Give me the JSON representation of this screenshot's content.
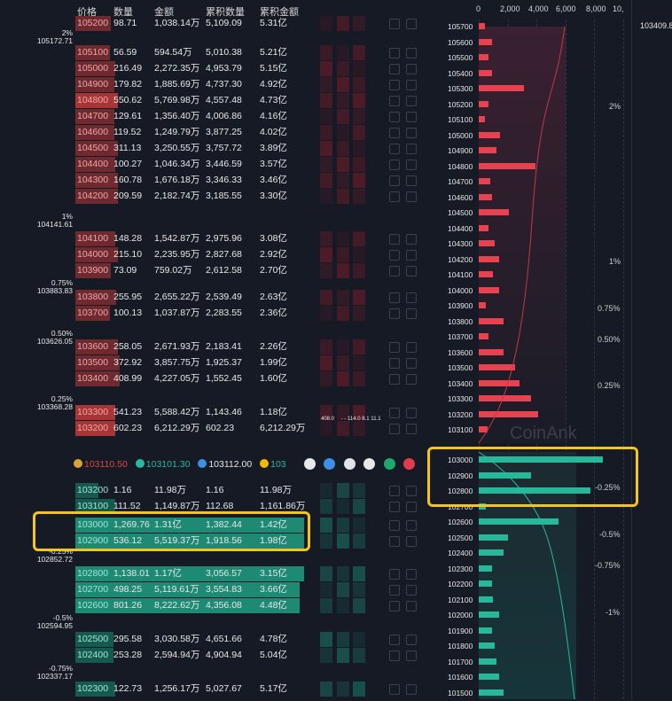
{
  "header": {
    "price": "价格",
    "qty": "数量",
    "amount": "金额",
    "cum_qty": "累积数量",
    "cum_amount": "累积金额"
  },
  "top_right_price": "103409.8",
  "scale_labels": [
    "0",
    "2,000",
    "4,000",
    "6,000",
    "8,000",
    "10,"
  ],
  "asks": [
    {
      "price": "105200",
      "qty": "98.71",
      "amount": "1,038.14万",
      "cum_qty": "5,109.09",
      "cum_amount": "5.31亿"
    },
    {
      "price": "105100",
      "qty": "56.59",
      "amount": "594.54万",
      "cum_qty": "5,010.38",
      "cum_amount": "5.21亿"
    },
    {
      "price": "105000",
      "qty": "216.49",
      "amount": "2,272.35万",
      "cum_qty": "4,953.79",
      "cum_amount": "5.15亿"
    },
    {
      "price": "104900",
      "qty": "179.82",
      "amount": "1,885.69万",
      "cum_qty": "4,737.30",
      "cum_amount": "4.92亿"
    },
    {
      "price": "104800",
      "qty": "550.62",
      "amount": "5,769.98万",
      "cum_qty": "4,557.48",
      "cum_amount": "4.73亿"
    },
    {
      "price": "104700",
      "qty": "129.61",
      "amount": "1,356.40万",
      "cum_qty": "4,006.86",
      "cum_amount": "4.16亿"
    },
    {
      "price": "104600",
      "qty": "119.52",
      "amount": "1,249.79万",
      "cum_qty": "3,877.25",
      "cum_amount": "4.02亿"
    },
    {
      "price": "104500",
      "qty": "311.13",
      "amount": "3,250.55万",
      "cum_qty": "3,757.72",
      "cum_amount": "3.89亿"
    },
    {
      "price": "104400",
      "qty": "100.27",
      "amount": "1,046.34万",
      "cum_qty": "3,446.59",
      "cum_amount": "3.57亿"
    },
    {
      "price": "104300",
      "qty": "160.78",
      "amount": "1,676.18万",
      "cum_qty": "3,346.33",
      "cum_amount": "3.46亿"
    },
    {
      "price": "104200",
      "qty": "209.59",
      "amount": "2,182.74万",
      "cum_qty": "3,185.55",
      "cum_amount": "3.30亿"
    },
    {
      "price": "104100",
      "qty": "148.28",
      "amount": "1,542.87万",
      "cum_qty": "2,975.96",
      "cum_amount": "3.08亿"
    },
    {
      "price": "104000",
      "qty": "215.10",
      "amount": "2,235.95万",
      "cum_qty": "2,827.68",
      "cum_amount": "2.92亿"
    },
    {
      "price": "103900",
      "qty": "73.09",
      "amount": "759.02万",
      "cum_qty": "2,612.58",
      "cum_amount": "2.70亿"
    },
    {
      "price": "103800",
      "qty": "255.95",
      "amount": "2,655.22万",
      "cum_qty": "2,539.49",
      "cum_amount": "2.63亿"
    },
    {
      "price": "103700",
      "qty": "100.13",
      "amount": "1,037.87万",
      "cum_qty": "2,283.55",
      "cum_amount": "2.36亿"
    },
    {
      "price": "103600",
      "qty": "258.05",
      "amount": "2,671.93万",
      "cum_qty": "2,183.41",
      "cum_amount": "2.26亿"
    },
    {
      "price": "103500",
      "qty": "372.92",
      "amount": "3,857.75万",
      "cum_qty": "1,925.37",
      "cum_amount": "1.99亿"
    },
    {
      "price": "103400",
      "qty": "408.99",
      "amount": "4,227.05万",
      "cum_qty": "1,552.45",
      "cum_amount": "1.60亿"
    },
    {
      "price": "103300",
      "qty": "541.23",
      "amount": "5,588.42万",
      "cum_qty": "1,143.46",
      "cum_amount": "1.18亿"
    },
    {
      "price": "103200",
      "qty": "602.23",
      "amount": "6,212.29万",
      "cum_qty": "602.23",
      "cum_amount": "6,212.29万"
    }
  ],
  "bids": [
    {
      "price": "103200",
      "qty": "1.16",
      "amount": "11.98万",
      "cum_qty": "1.16",
      "cum_amount": "11.98万"
    },
    {
      "price": "103100",
      "qty": "111.52",
      "amount": "1,149.87万",
      "cum_qty": "112.68",
      "cum_amount": "1,161.86万"
    },
    {
      "price": "103000",
      "qty": "1,269.76",
      "amount": "1.31亿",
      "cum_qty": "1,382.44",
      "cum_amount": "1.42亿"
    },
    {
      "price": "102900",
      "qty": "536.12",
      "amount": "5,519.37万",
      "cum_qty": "1,918.56",
      "cum_amount": "1.98亿"
    },
    {
      "price": "102800",
      "qty": "1,138.01",
      "amount": "1.17亿",
      "cum_qty": "3,056.57",
      "cum_amount": "3.15亿"
    },
    {
      "price": "102700",
      "qty": "498.25",
      "amount": "5,119.61万",
      "cum_qty": "3,554.83",
      "cum_amount": "3.66亿"
    },
    {
      "price": "102600",
      "qty": "801.26",
      "amount": "8,222.62万",
      "cum_qty": "4,356.08",
      "cum_amount": "4.48亿"
    },
    {
      "price": "102500",
      "qty": "295.58",
      "amount": "3,030.58万",
      "cum_qty": "4,651.66",
      "cum_amount": "4.78亿"
    },
    {
      "price": "102400",
      "qty": "253.28",
      "amount": "2,594.94万",
      "cum_qty": "4,904.94",
      "cum_amount": "5.04亿"
    },
    {
      "price": "102300",
      "qty": "122.73",
      "amount": "1,256.17万",
      "cum_qty": "5,027.67",
      "cum_amount": "5.17亿"
    }
  ],
  "pct_markers": [
    {
      "pct": "2%",
      "price": "105172.71"
    },
    {
      "pct": "1%",
      "price": "104141.61"
    },
    {
      "pct": "0.75%",
      "price": "103883.83"
    },
    {
      "pct": "0.50%",
      "price": "103626.05"
    },
    {
      "pct": "0.25%",
      "price": "103368.28"
    },
    {
      "pct": "-0.25%",
      "price": "102852.72"
    },
    {
      "pct": "-0.5%",
      "price": "102594.95"
    },
    {
      "pct": "-0.75%",
      "price": "102337.17"
    }
  ],
  "ticker": [
    {
      "value": "103110.50",
      "color": "#e0463f",
      "icon": "coin-gold"
    },
    {
      "value": "103101.30",
      "color": "#2bb8a0",
      "icon": "coin-green"
    },
    {
      "value": "103112.00",
      "color": "#e8e8e8",
      "icon": "coin-blue"
    },
    {
      "value": "103",
      "color": "#2bb8a0",
      "icon": "coin-yellow"
    }
  ],
  "heat_labels": [
    "408.0",
    "- -",
    "114.0",
    "8.1",
    "11.1"
  ],
  "histogram_asks": [
    {
      "price": "105700",
      "v": 400
    },
    {
      "price": "105600",
      "v": 900
    },
    {
      "price": "105500",
      "v": 700
    },
    {
      "price": "105400",
      "v": 900
    },
    {
      "price": "105300",
      "v": 3100
    },
    {
      "price": "105200",
      "v": 700
    },
    {
      "price": "105100",
      "v": 400
    },
    {
      "price": "105000",
      "v": 1500
    },
    {
      "price": "104900",
      "v": 1200
    },
    {
      "price": "104800",
      "v": 3900
    },
    {
      "price": "104700",
      "v": 800
    },
    {
      "price": "104600",
      "v": 900
    },
    {
      "price": "104500",
      "v": 2100
    },
    {
      "price": "104400",
      "v": 700
    },
    {
      "price": "104300",
      "v": 1100
    },
    {
      "price": "104200",
      "v": 1400
    },
    {
      "price": "104100",
      "v": 1000
    },
    {
      "price": "104000",
      "v": 1400
    },
    {
      "price": "103900",
      "v": 500
    },
    {
      "price": "103800",
      "v": 1700
    },
    {
      "price": "103700",
      "v": 700
    },
    {
      "price": "103600",
      "v": 1700
    },
    {
      "price": "103500",
      "v": 2500
    },
    {
      "price": "103400",
      "v": 2800
    },
    {
      "price": "103300",
      "v": 3600
    },
    {
      "price": "103200",
      "v": 4100
    },
    {
      "price": "103100",
      "v": 600
    }
  ],
  "histogram_bids": [
    {
      "price": "103000",
      "v": 8600
    },
    {
      "price": "102900",
      "v": 3600
    },
    {
      "price": "102800",
      "v": 7700
    },
    {
      "price": "102700",
      "v": 500
    },
    {
      "price": "102600",
      "v": 5500
    },
    {
      "price": "102500",
      "v": 2000
    },
    {
      "price": "102400",
      "v": 1700
    },
    {
      "price": "102300",
      "v": 900
    },
    {
      "price": "102200",
      "v": 900
    },
    {
      "price": "102100",
      "v": 1000
    },
    {
      "price": "102000",
      "v": 1400
    },
    {
      "price": "101900",
      "v": 900
    },
    {
      "price": "101800",
      "v": 1100
    },
    {
      "price": "101700",
      "v": 1200
    },
    {
      "price": "101600",
      "v": 1400
    },
    {
      "price": "101500",
      "v": 1700
    }
  ],
  "hist_pct_labels": [
    {
      "label": "2%"
    },
    {
      "label": "1%"
    },
    {
      "label": "0.75%"
    },
    {
      "label": "0.50%"
    },
    {
      "label": "0.25%"
    },
    {
      "label": "-0.25%"
    },
    {
      "label": "-0.5%"
    },
    {
      "label": "-0.75%"
    },
    {
      "label": "-1%"
    }
  ],
  "watermark": "CoinAnk"
}
